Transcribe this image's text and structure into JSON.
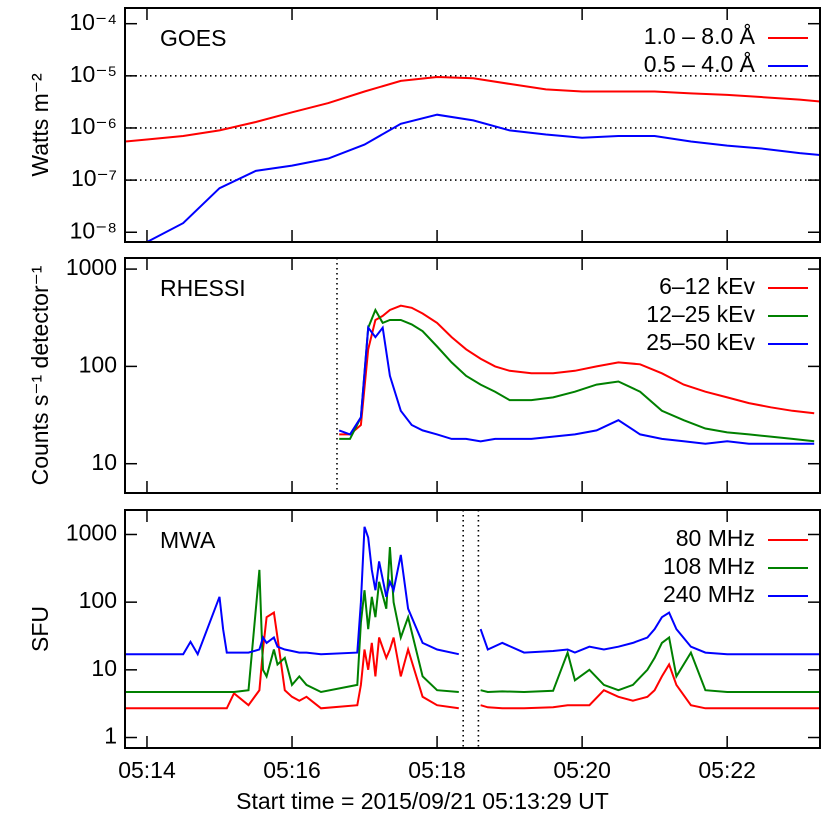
{
  "chart_data": [
    {
      "type": "line",
      "label": "GOES",
      "ylabel": "Watts m⁻²",
      "log_y": true,
      "legend": "upper right",
      "xlim": [
        13.697,
        23.28
      ],
      "ylim": [
        6.5e-09,
        0.0002
      ],
      "yticks": [
        {
          "value": 1e-08,
          "label": "10⁻⁸"
        },
        {
          "value": 1e-07,
          "label": "10⁻⁷"
        },
        {
          "value": 1e-06,
          "label": "10⁻⁶"
        },
        {
          "value": 1e-05,
          "label": "10⁻⁵"
        },
        {
          "value": 0.0001,
          "label": "10⁻⁴"
        }
      ],
      "hlines": [
        1e-05,
        1e-06,
        1e-07
      ],
      "x": [
        13.7,
        14,
        14.5,
        15,
        15.5,
        16,
        16.5,
        17,
        17.5,
        18,
        18.5,
        19,
        19.5,
        20,
        20.5,
        21,
        21.5,
        22,
        22.5,
        23,
        23.3
      ],
      "series": [
        {
          "name": "1.0 – 8.0 Å",
          "color": "#ff0000",
          "values": [
            5.5e-07,
            6e-07,
            7e-07,
            9e-07,
            1.3e-06,
            2e-06,
            3e-06,
            5e-06,
            8e-06,
            9.5e-06,
            9e-06,
            7e-06,
            5.5e-06,
            5e-06,
            5e-06,
            5e-06,
            4.6e-06,
            4.3e-06,
            3.9e-06,
            3.5e-06,
            3.2e-06
          ]
        },
        {
          "name": "0.5 – 4.0 Å",
          "color": "#0000ff",
          "values": [
            null,
            6.5e-09,
            1.5e-08,
            7e-08,
            1.5e-07,
            1.9e-07,
            2.6e-07,
            4.8e-07,
            1.2e-06,
            1.8e-06,
            1.4e-06,
            9e-07,
            7.5e-07,
            6.5e-07,
            7e-07,
            7e-07,
            5.5e-07,
            4.6e-07,
            4e-07,
            3.3e-07,
            3e-07
          ]
        }
      ]
    },
    {
      "type": "line",
      "label": "RHESSI",
      "ylabel": "Counts s⁻¹ detector⁻¹",
      "log_y": true,
      "legend": "upper right",
      "xlim": [
        13.697,
        23.28
      ],
      "ylim": [
        5,
        1300
      ],
      "yticks": [
        10,
        100,
        1000
      ],
      "vlines": [
        16.62
      ],
      "x": [
        16.65,
        16.8,
        16.95,
        17.05,
        17.15,
        17.25,
        17.35,
        17.5,
        17.65,
        17.8,
        18,
        18.2,
        18.4,
        18.6,
        18.8,
        19,
        19.3,
        19.6,
        19.9,
        20.2,
        20.5,
        20.8,
        21.1,
        21.4,
        21.7,
        22,
        22.3,
        22.6,
        22.9,
        23.2
      ],
      "series": [
        {
          "name": "6–12 kEv",
          "color": "#ff0000",
          "values": [
            20,
            20,
            25,
            150,
            300,
            330,
            380,
            420,
            400,
            350,
            280,
            200,
            150,
            120,
            100,
            90,
            85,
            85,
            90,
            100,
            110,
            105,
            85,
            65,
            55,
            48,
            42,
            38,
            35,
            33
          ]
        },
        {
          "name": "12–25 kEv",
          "color": "#008000",
          "values": [
            18,
            18,
            30,
            250,
            380,
            280,
            300,
            300,
            270,
            230,
            160,
            110,
            80,
            65,
            55,
            45,
            45,
            48,
            55,
            65,
            70,
            55,
            35,
            28,
            23,
            21,
            20,
            19,
            18,
            17
          ]
        },
        {
          "name": "25–50 kEv",
          "color": "#0000ff",
          "values": [
            22,
            20,
            30,
            250,
            200,
            250,
            80,
            35,
            25,
            22,
            20,
            18,
            18,
            17,
            18,
            18,
            18,
            19,
            20,
            22,
            28,
            20,
            18,
            17,
            16,
            17,
            16,
            16,
            16,
            16
          ]
        }
      ]
    },
    {
      "type": "line",
      "label": "MWA",
      "ylabel": "SFU",
      "log_y": true,
      "legend": "upper right",
      "xlabel": "Start time = 2015/09/21 05:13:29 UT",
      "xlim": [
        13.697,
        23.28
      ],
      "ylim": [
        0.7,
        2300
      ],
      "xticks": [
        {
          "value": 14,
          "label": "05:14"
        },
        {
          "value": 16,
          "label": "05:16"
        },
        {
          "value": 18,
          "label": "05:18"
        },
        {
          "value": 20,
          "label": "05:20"
        },
        {
          "value": 22,
          "label": "05:22"
        }
      ],
      "yticks": [
        1,
        10,
        100,
        1000
      ],
      "vlines": [
        18.36,
        18.57
      ],
      "x": [
        13.7,
        14.5,
        14.6,
        14.7,
        15.0,
        15.05,
        15.1,
        15.2,
        15.4,
        15.55,
        15.6,
        15.65,
        15.75,
        15.8,
        15.9,
        16.0,
        16.1,
        16.2,
        16.4,
        16.9,
        16.95,
        17.0,
        17.05,
        17.1,
        17.15,
        17.2,
        17.3,
        17.35,
        17.4,
        17.5,
        17.6,
        17.8,
        18.0,
        18.3,
        18.36,
        18.6,
        18.7,
        18.9,
        19.2,
        19.6,
        19.8,
        19.9,
        20.1,
        20.3,
        20.5,
        20.7,
        20.9,
        21.0,
        21.1,
        21.2,
        21.3,
        21.5,
        21.7,
        22.0,
        23.3
      ],
      "series": [
        {
          "name": "80 MHz",
          "color": "#ff0000",
          "values": [
            2.7,
            2.7,
            2.7,
            2.7,
            2.7,
            2.7,
            2.7,
            4.5,
            3,
            5,
            20,
            60,
            70,
            30,
            5,
            4,
            3.5,
            4,
            2.7,
            3,
            6,
            20,
            10,
            25,
            8,
            30,
            15,
            20,
            30,
            8,
            20,
            4,
            3,
            2.7,
            null,
            3,
            2.8,
            2.7,
            2.7,
            2.8,
            3,
            3,
            3,
            5,
            4,
            3.5,
            4,
            5,
            8,
            12,
            6,
            3,
            2.7,
            2.7,
            2.7
          ]
        },
        {
          "name": "108 MHz",
          "color": "#008000",
          "values": [
            4.7,
            4.7,
            4.7,
            4.7,
            4.7,
            4.7,
            4.7,
            4.7,
            5,
            300,
            10,
            8,
            20,
            12,
            15,
            6,
            8,
            6,
            4.7,
            6,
            50,
            150,
            40,
            120,
            60,
            200,
            80,
            650,
            100,
            30,
            60,
            8,
            5,
            4.7,
            null,
            5,
            4.7,
            4.8,
            4.7,
            4.9,
            18,
            7,
            10,
            6,
            5,
            6,
            10,
            15,
            25,
            30,
            8,
            18,
            5,
            4.7,
            4.7
          ]
        },
        {
          "name": "240 MHz",
          "color": "#0000ff",
          "values": [
            17,
            17,
            26,
            17,
            120,
            40,
            18,
            18,
            18,
            20,
            30,
            25,
            30,
            22,
            20,
            19,
            18,
            18,
            17,
            18,
            100,
            1300,
            900,
            300,
            150,
            400,
            120,
            200,
            150,
            500,
            80,
            25,
            20,
            17,
            null,
            40,
            20,
            25,
            18,
            19,
            20,
            18,
            22,
            20,
            22,
            25,
            30,
            40,
            60,
            70,
            40,
            22,
            18,
            17,
            17
          ]
        }
      ]
    }
  ]
}
